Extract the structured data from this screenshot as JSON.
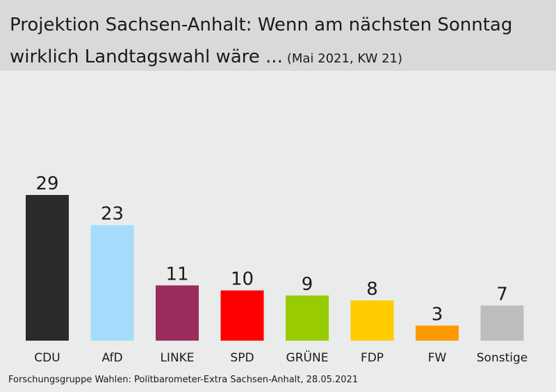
{
  "header": {
    "title_line1": "Projektion Sachsen-Anhalt: Wenn am nächsten Sonntag",
    "title_line2": "wirklich Landtagswahl wäre ...",
    "subtitle": "(Mai 2021, KW 21)"
  },
  "source": "Forschungsgruppe Wahlen: Politbarometer-Extra Sachsen-Anhalt, 28.05.2021",
  "chart_data": {
    "type": "bar",
    "title": "Projektion Sachsen-Anhalt: Wenn am nächsten Sonntag wirklich Landtagswahl wäre ...",
    "subtitle": "(Mai 2021, KW 21)",
    "categories": [
      "CDU",
      "AfD",
      "LINKE",
      "SPD",
      "GRÜNE",
      "FDP",
      "FW",
      "Sonstige"
    ],
    "values": [
      29,
      23,
      11,
      10,
      9,
      8,
      3,
      7
    ],
    "colors": [
      "#2a2a2a",
      "#a6dcfb",
      "#9b2d5e",
      "#ff0000",
      "#99cc00",
      "#ffcc00",
      "#ff9900",
      "#bdbdbd"
    ],
    "data_labels": [
      "29",
      "23",
      "11",
      "10",
      "9",
      "8",
      "3",
      "7"
    ],
    "ylim": [
      0,
      29
    ],
    "grid": false,
    "legend": "none"
  }
}
